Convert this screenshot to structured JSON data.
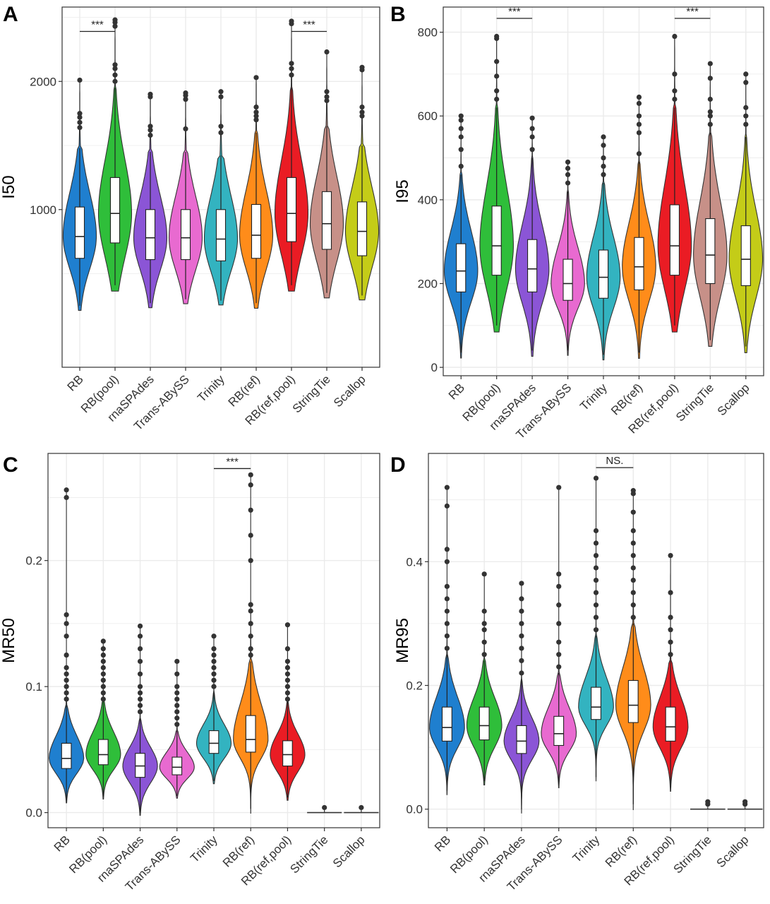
{
  "figure": {
    "categories": [
      "RB",
      "RB(pool)",
      "rnaSPAdes",
      "Trans-ABySS",
      "Trinity",
      "RB(ref)",
      "RB(ref,pool)",
      "StringTie",
      "Scallop"
    ],
    "colors": [
      "#1f7fcf",
      "#2fbe3a",
      "#8b55d6",
      "#e86ad0",
      "#33b3c0",
      "#ff8c1a",
      "#ea1c24",
      "#c79088",
      "#c4cc18"
    ]
  },
  "chart_data": [
    {
      "type": "violin",
      "panel": "A",
      "ylabel": "I50",
      "ylim": [
        -230,
        2580
      ],
      "yticks": [
        1000,
        2000
      ],
      "sig": {
        "from": "RB",
        "to": "RB(pool)",
        "label": "***",
        "y": 2390
      },
      "sig2": {
        "from": "RB(ref,pool)",
        "to": "StringTie",
        "label": "***",
        "y": 2390
      },
      "stats": [
        {
          "min": 250,
          "q1": 620,
          "median": 790,
          "q3": 1020,
          "max": 1480,
          "outliers": [
            1640,
            1680,
            1720,
            1750,
            2010
          ]
        },
        {
          "min": 410,
          "q1": 740,
          "median": 970,
          "q3": 1250,
          "max": 1950,
          "outliers": [
            2000,
            2050,
            2100,
            2130,
            2430,
            2460,
            2480
          ]
        },
        {
          "min": 270,
          "q1": 610,
          "median": 780,
          "q3": 1000,
          "max": 1450,
          "outliers": [
            1580,
            1620,
            1650,
            1880,
            1900
          ]
        },
        {
          "min": 300,
          "q1": 610,
          "median": 780,
          "q3": 1000,
          "max": 1450,
          "outliers": [
            1630,
            1860,
            1890,
            1910
          ]
        },
        {
          "min": 290,
          "q1": 600,
          "median": 770,
          "q3": 1000,
          "max": 1420,
          "outliers": [
            1600,
            1650,
            1880,
            1920
          ]
        },
        {
          "min": 270,
          "q1": 620,
          "median": 800,
          "q3": 1040,
          "max": 1600,
          "outliers": [
            1700,
            1730,
            1760,
            1800,
            2030
          ]
        },
        {
          "min": 410,
          "q1": 750,
          "median": 970,
          "q3": 1250,
          "max": 1950,
          "outliers": [
            2050,
            2100,
            2140,
            2450,
            2470
          ]
        },
        {
          "min": 350,
          "q1": 690,
          "median": 890,
          "q3": 1140,
          "max": 1650,
          "outliers": [
            1850,
            1880,
            1920,
            2230
          ]
        },
        {
          "min": 330,
          "q1": 640,
          "median": 830,
          "q3": 1060,
          "max": 1500,
          "outliers": [
            1730,
            1760,
            1800,
            2090,
            2110
          ]
        }
      ]
    },
    {
      "type": "violin",
      "panel": "B",
      "ylabel": "I95",
      "ylim": [
        -20,
        860
      ],
      "yticks": [
        0,
        200,
        400,
        600,
        800
      ],
      "sig": {
        "from": "RB(pool)",
        "to": "rnaSPAdes",
        "label": "***",
        "y": 833
      },
      "sig2": {
        "from": "RB(ref,pool)",
        "to": "StringTie",
        "label": "***",
        "y": 833
      },
      "stats": [
        {
          "min": 35,
          "q1": 180,
          "median": 230,
          "q3": 295,
          "max": 460,
          "outliers": [
            480,
            520,
            550,
            570,
            590,
            600
          ]
        },
        {
          "min": 100,
          "q1": 220,
          "median": 290,
          "q3": 385,
          "max": 620,
          "outliers": [
            640,
            660,
            695,
            730,
            785,
            790
          ]
        },
        {
          "min": 40,
          "q1": 180,
          "median": 235,
          "q3": 305,
          "max": 500,
          "outliers": [
            520,
            550,
            570,
            595
          ]
        },
        {
          "min": 40,
          "q1": 160,
          "median": 200,
          "q3": 258,
          "max": 420,
          "outliers": [
            440,
            460,
            475,
            490
          ]
        },
        {
          "min": 30,
          "q1": 165,
          "median": 215,
          "q3": 280,
          "max": 440,
          "outliers": [
            460,
            480,
            500,
            530,
            550
          ]
        },
        {
          "min": 35,
          "q1": 185,
          "median": 240,
          "q3": 310,
          "max": 490,
          "outliers": [
            510,
            560,
            580,
            600,
            630,
            645
          ]
        },
        {
          "min": 100,
          "q1": 220,
          "median": 290,
          "q3": 388,
          "max": 620,
          "outliers": [
            640,
            660,
            700,
            790
          ]
        },
        {
          "min": 65,
          "q1": 200,
          "median": 268,
          "q3": 355,
          "max": 560,
          "outliers": [
            580,
            600,
            610,
            640,
            690,
            725
          ]
        },
        {
          "min": 50,
          "q1": 195,
          "median": 258,
          "q3": 338,
          "max": 550,
          "outliers": [
            580,
            600,
            620,
            680,
            700
          ]
        }
      ]
    },
    {
      "type": "violin",
      "panel": "C",
      "ylabel": "MR50",
      "ylim": [
        -0.012,
        0.285
      ],
      "yticks": [
        0.0,
        0.1,
        0.2
      ],
      "sig": {
        "from": "Trinity",
        "to": "RB(ref)",
        "label": "***",
        "y": 0.273
      },
      "stats": [
        {
          "min": 0.01,
          "q1": 0.035,
          "median": 0.043,
          "q3": 0.055,
          "max": 0.085,
          "outliers": [
            0.09,
            0.095,
            0.1,
            0.105,
            0.11,
            0.115,
            0.125,
            0.14,
            0.15,
            0.157,
            0.25,
            0.256
          ]
        },
        {
          "min": 0.013,
          "q1": 0.038,
          "median": 0.046,
          "q3": 0.058,
          "max": 0.088,
          "outliers": [
            0.09,
            0.095,
            0.1,
            0.105,
            0.11,
            0.115,
            0.12,
            0.125,
            0.13,
            0.136
          ]
        },
        {
          "min": 0.0,
          "q1": 0.028,
          "median": 0.037,
          "q3": 0.047,
          "max": 0.075,
          "outliers": [
            0.08,
            0.085,
            0.09,
            0.095,
            0.1,
            0.11,
            0.12,
            0.13,
            0.14,
            0.148
          ]
        },
        {
          "min": 0.013,
          "q1": 0.03,
          "median": 0.036,
          "q3": 0.044,
          "max": 0.065,
          "outliers": [
            0.07,
            0.075,
            0.08,
            0.085,
            0.09,
            0.095,
            0.1,
            0.11,
            0.12
          ]
        },
        {
          "min": 0.025,
          "q1": 0.047,
          "median": 0.055,
          "q3": 0.065,
          "max": 0.095,
          "outliers": [
            0.1,
            0.105,
            0.11,
            0.115,
            0.12,
            0.125,
            0.13,
            0.14
          ]
        },
        {
          "min": 0.003,
          "q1": 0.048,
          "median": 0.058,
          "q3": 0.077,
          "max": 0.12,
          "outliers": [
            0.125,
            0.13,
            0.14,
            0.15,
            0.16,
            0.165,
            0.2,
            0.22,
            0.24,
            0.26,
            0.268
          ]
        },
        {
          "min": 0.012,
          "q1": 0.037,
          "median": 0.046,
          "q3": 0.057,
          "max": 0.088,
          "outliers": [
            0.09,
            0.095,
            0.1,
            0.105,
            0.11,
            0.115,
            0.12,
            0.13,
            0.149
          ]
        },
        {
          "min": 0.0,
          "q1": 0.0,
          "median": 0.0,
          "q3": 0.0,
          "max": 0.002,
          "outliers": [
            0.004
          ]
        },
        {
          "min": 0.0,
          "q1": 0.0,
          "median": 0.0,
          "q3": 0.0,
          "max": 0.002,
          "outliers": [
            0.004
          ]
        }
      ]
    },
    {
      "type": "violin",
      "panel": "D",
      "ylabel": "MR95",
      "ylim": [
        -0.03,
        0.575
      ],
      "yticks": [
        0.0,
        0.2,
        0.4
      ],
      "sig": {
        "from": "Trinity",
        "to": "RB(ref)",
        "label": "NS.",
        "y": 0.552
      },
      "stats": [
        {
          "min": 0.03,
          "q1": 0.11,
          "median": 0.132,
          "q3": 0.165,
          "max": 0.25,
          "outliers": [
            0.26,
            0.28,
            0.3,
            0.32,
            0.34,
            0.36,
            0.4,
            0.42,
            0.49,
            0.52
          ]
        },
        {
          "min": 0.045,
          "q1": 0.112,
          "median": 0.135,
          "q3": 0.165,
          "max": 0.24,
          "outliers": [
            0.25,
            0.27,
            0.29,
            0.3,
            0.32,
            0.38
          ]
        },
        {
          "min": 0.0,
          "q1": 0.09,
          "median": 0.11,
          "q3": 0.135,
          "max": 0.21,
          "outliers": [
            0.22,
            0.24,
            0.26,
            0.28,
            0.3,
            0.32,
            0.34,
            0.365
          ]
        },
        {
          "min": 0.04,
          "q1": 0.103,
          "median": 0.122,
          "q3": 0.15,
          "max": 0.22,
          "outliers": [
            0.23,
            0.25,
            0.27,
            0.3,
            0.33,
            0.36,
            0.38,
            0.52
          ]
        },
        {
          "min": 0.052,
          "q1": 0.145,
          "median": 0.165,
          "q3": 0.197,
          "max": 0.28,
          "outliers": [
            0.29,
            0.31,
            0.33,
            0.35,
            0.37,
            0.39,
            0.41,
            0.43,
            0.45,
            0.535
          ]
        },
        {
          "min": 0.008,
          "q1": 0.14,
          "median": 0.168,
          "q3": 0.208,
          "max": 0.3,
          "outliers": [
            0.31,
            0.33,
            0.35,
            0.37,
            0.39,
            0.41,
            0.43,
            0.45,
            0.48,
            0.51,
            0.515
          ]
        },
        {
          "min": 0.035,
          "q1": 0.11,
          "median": 0.133,
          "q3": 0.165,
          "max": 0.24,
          "outliers": [
            0.25,
            0.27,
            0.29,
            0.31,
            0.35,
            0.41
          ]
        },
        {
          "min": 0.0,
          "q1": 0.0,
          "median": 0.0,
          "q3": 0.0,
          "max": 0.004,
          "outliers": [
            0.008,
            0.012
          ]
        },
        {
          "min": 0.0,
          "q1": 0.0,
          "median": 0.0,
          "q3": 0.0,
          "max": 0.004,
          "outliers": [
            0.008,
            0.012
          ]
        }
      ]
    }
  ]
}
